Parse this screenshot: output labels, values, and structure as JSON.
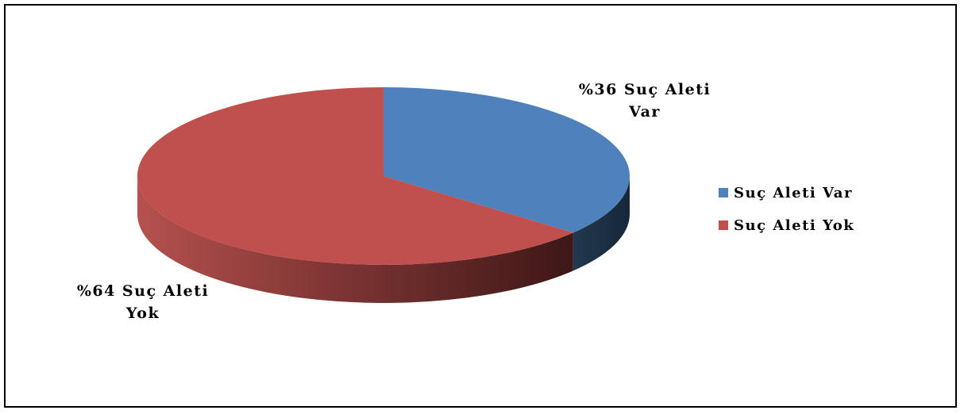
{
  "chart_data": {
    "type": "pie",
    "style": "3d",
    "slices": [
      {
        "name": "Suç Aleti Var",
        "value": 36,
        "label_line1": "%36 Suç Aleti",
        "label_line2": "Var",
        "color": "#4f81bd",
        "side_color": "#1f3650"
      },
      {
        "name": "Suç Aleti Yok",
        "value": 64,
        "label_line1": "%64 Suç Aleti",
        "label_line2": "Yok",
        "color": "#c0504d",
        "side_color": "#7a2e2c"
      }
    ],
    "legend_position": "right"
  }
}
